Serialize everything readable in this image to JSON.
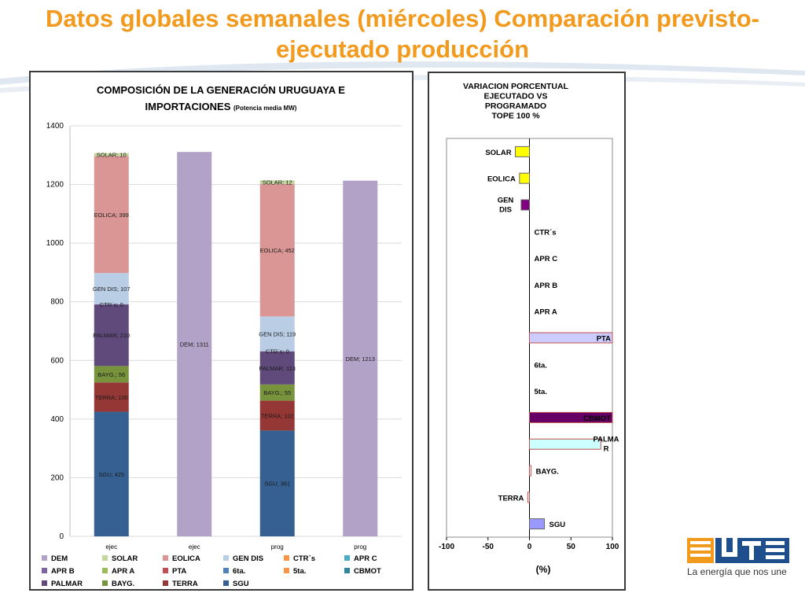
{
  "slide": {
    "title": "Datos globales semanales  (miércoles) Comparación previsto-ejecutado producción",
    "logo_text": "La energía que nos une"
  },
  "colors": {
    "title": "#f29a1d",
    "DEM": "#b3a2c7",
    "SOLAR": "#c3d69b",
    "EOLICA": "#d99694",
    "GEN DIS": "#b9cde5",
    "CTR´s": "#f79646",
    "APR C": "#4bacc6",
    "APR B": "#8064a2",
    "APR A": "#9bbb59",
    "PTA": "#c0504d",
    "6ta.": "#4f81bd",
    "5ta.": "#f79646",
    "CBMOT": "#31859c",
    "PALMAR": "#604a7b",
    "BAYG.": "#77933c",
    "TERRA": "#953735",
    "SGU": "#376092"
  },
  "chart_data": [
    {
      "type": "bar",
      "stacked": true,
      "title": "COMPOSICIÓN DE LA GENERACIÓN URUGUAYA E IMPORTACIONES",
      "subtitle": "(Potencia media MW)",
      "categories": [
        "ejec",
        "ejec",
        "prog",
        "prog"
      ],
      "ylim": [
        0,
        1400
      ],
      "yticks": [
        0,
        200,
        400,
        600,
        800,
        1000,
        1200,
        1400
      ],
      "grid": true,
      "legend_position": "bottom",
      "legend": [
        "DEM",
        "SOLAR",
        "EOLICA",
        "GEN DIS",
        "CTR´s",
        "APR C",
        "APR B",
        "APR A",
        "PTA",
        "6ta.",
        "5ta.",
        "CBMOT",
        "PALMAR",
        "BAYG.",
        "TERRA",
        "SGU"
      ],
      "series": [
        {
          "name": "SGU",
          "values": [
            425,
            0,
            361,
            0
          ],
          "labels": [
            "SGU; 425",
            "",
            "SGU; 361",
            ""
          ]
        },
        {
          "name": "TERRA",
          "values": [
            100,
            0,
            102,
            0
          ],
          "labels": [
            "TERRA; 100",
            "",
            "TERRA; 102",
            ""
          ]
        },
        {
          "name": "BAYG.",
          "values": [
            56,
            0,
            55,
            0
          ],
          "labels": [
            "BAYG.; 56",
            "",
            "BAYG.; 55",
            ""
          ]
        },
        {
          "name": "PALMAR",
          "values": [
            210,
            0,
            113,
            0
          ],
          "labels": [
            "PALMAR; 210",
            "",
            "PALMAR; 113",
            ""
          ]
        },
        {
          "name": "CTR´s",
          "values": [
            0,
            0,
            0,
            0
          ],
          "labels": [
            "CTR´s; 0",
            "",
            "CTR´s; 0",
            ""
          ]
        },
        {
          "name": "GEN DIS",
          "values": [
            107,
            0,
            119,
            0
          ],
          "labels": [
            "GEN DIS; 107",
            "",
            "GEN DIS; 119",
            ""
          ]
        },
        {
          "name": "EOLICA",
          "values": [
            399,
            0,
            452,
            0
          ],
          "labels": [
            "EOLICA; 399",
            "",
            "EOLICA; 452",
            ""
          ]
        },
        {
          "name": "SOLAR",
          "values": [
            10,
            0,
            12,
            0
          ],
          "labels": [
            "SOLAR; 10",
            "",
            "SOLAR; 12",
            ""
          ]
        },
        {
          "name": "DEM",
          "values": [
            0,
            1311,
            0,
            1213
          ],
          "labels": [
            "",
            "DEM; 1311",
            "",
            "DEM; 1213"
          ]
        }
      ]
    },
    {
      "type": "bar",
      "orientation": "horizontal",
      "title": "VARIACION PORCENTUAL EJECUTADO VS PROGRAMADO TOPE 100 %",
      "title_lines": [
        "VARIACION PORCENTUAL",
        "EJECUTADO  VS",
        "PROGRAMADO",
        "TOPE 100 %"
      ],
      "xlabel": "(%)",
      "xlim": [
        -100,
        100
      ],
      "xticks": [
        -100,
        -50,
        0,
        50,
        100
      ],
      "categories": [
        "SOLAR",
        "EOLICA",
        "GEN DIS",
        "CTR´s",
        "APR C",
        "APR B",
        "APR A",
        "PTA",
        "6ta.",
        "5ta.",
        "CBMOT",
        "PALMAR",
        "BAYG.",
        "TERRA",
        "SGU"
      ],
      "values": [
        -17,
        -12,
        -10,
        0,
        0,
        0,
        0,
        100,
        0,
        0,
        100,
        86,
        2,
        -2,
        18
      ],
      "bar_fills": [
        "#ffff00",
        "#ffff00",
        "#800080",
        "",
        "",
        "",
        "",
        "#ccccff",
        "",
        "",
        "#660066",
        "#ccffff",
        "#ffffff",
        "#ffffff",
        "#9999ff"
      ],
      "bar_strokes": [
        "#666666",
        "#666666",
        "#666666",
        "",
        "",
        "",
        "",
        "#c0504d",
        "",
        "",
        "#c0504d",
        "#c0504d",
        "#c0504d",
        "#c0504d",
        "#666666"
      ]
    }
  ]
}
